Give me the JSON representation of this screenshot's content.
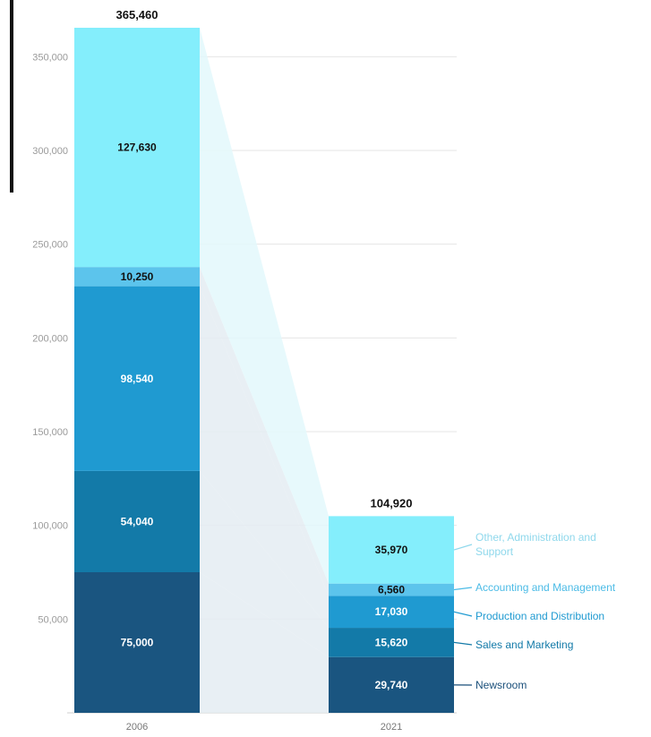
{
  "chart_data": {
    "type": "bar",
    "stacked": true,
    "categories": [
      "2006",
      "2021"
    ],
    "series": [
      {
        "name": "Newsroom",
        "values": [
          75000,
          29740
        ],
        "color": "#1a5580",
        "label_color": "#ffffff",
        "legend_color": "#1a4f7a"
      },
      {
        "name": "Sales and Marketing",
        "values": [
          54040,
          15620
        ],
        "color": "#137aa8",
        "label_color": "#ffffff",
        "legend_color": "#137aa8"
      },
      {
        "name": "Production and Distribution",
        "values": [
          98540,
          17030
        ],
        "color": "#1f9ad1",
        "label_color": "#ffffff",
        "legend_color": "#1f9ad1"
      },
      {
        "name": "Accounting and Management",
        "values": [
          10250,
          6560
        ],
        "color": "#5cc4ec",
        "label_color": "#111111",
        "legend_color": "#4bbbe6"
      },
      {
        "name": "Other, Administration and Support",
        "values": [
          127630,
          35970
        ],
        "color": "#84eefc",
        "label_color": "#111111",
        "legend_color": "#8fd8ec"
      }
    ],
    "totals": [
      365460,
      104920
    ],
    "y_ticks": [
      50000,
      100000,
      150000,
      200000,
      250000,
      300000,
      350000
    ],
    "ylim": [
      0,
      365460
    ],
    "grid": true,
    "legend_position": "right of 2021 bar",
    "colors": {
      "tick_text": "#9a9a9a",
      "grid": "#e6e6e6",
      "axis": "#cfcfcf",
      "flow_band": "#e4ecf2"
    }
  }
}
